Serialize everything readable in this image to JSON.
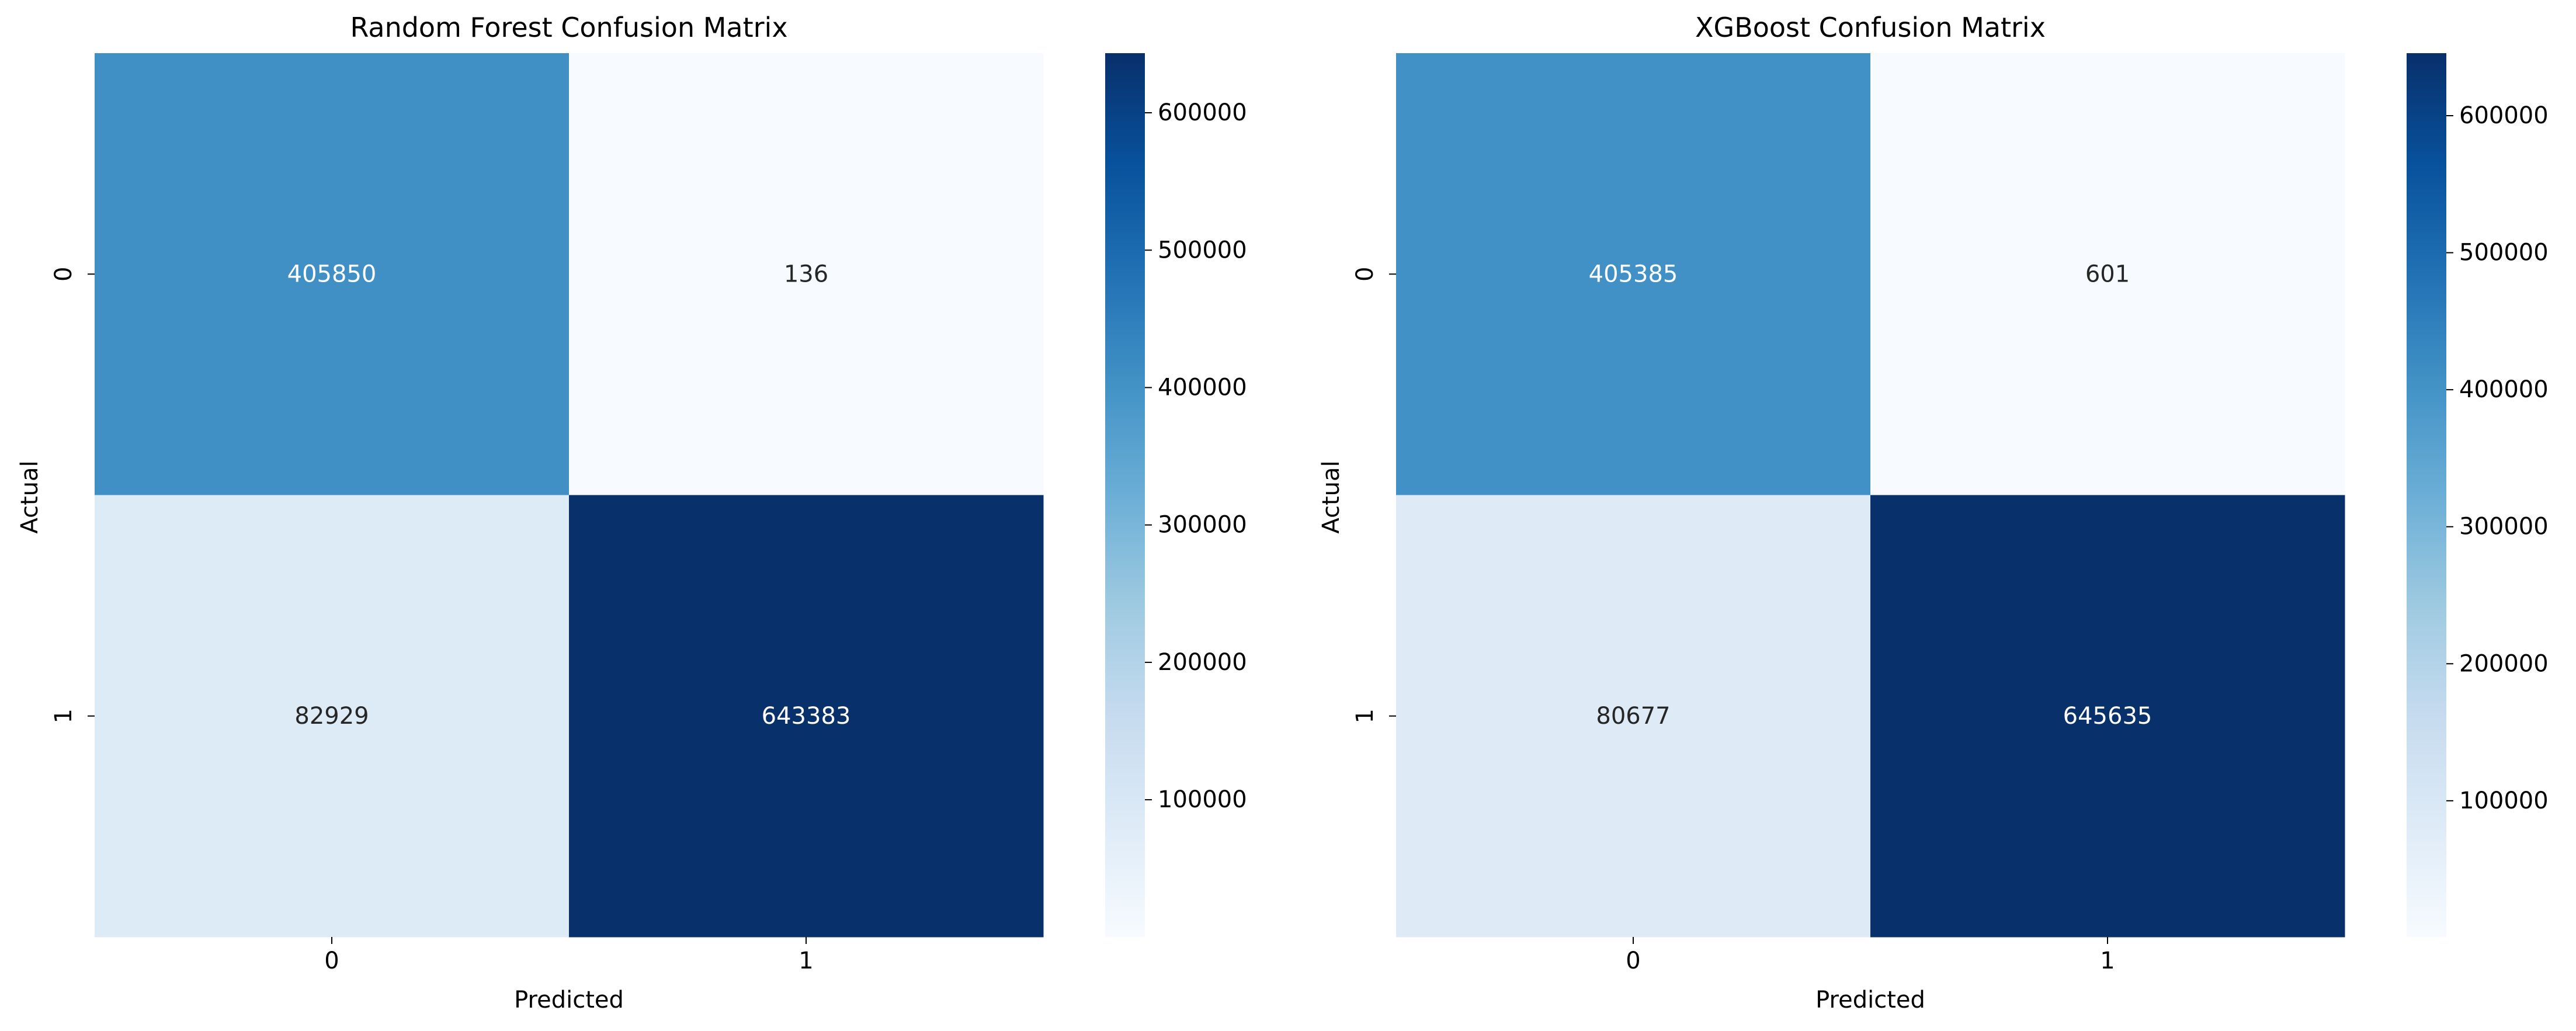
{
  "chart_data": [
    {
      "type": "heatmap",
      "title": "Random Forest Confusion Matrix",
      "xlabel": "Predicted",
      "ylabel": "Actual",
      "x_categories": [
        "0",
        "1"
      ],
      "y_categories": [
        "0",
        "1"
      ],
      "values": [
        [
          405850,
          136
        ],
        [
          82929,
          643383
        ]
      ],
      "value_labels": [
        [
          "405850",
          "136"
        ],
        [
          "82929",
          "643383"
        ]
      ],
      "colorbar": {
        "vmin": 136,
        "vmax": 643383,
        "ticks": [
          100000,
          200000,
          300000,
          400000,
          500000,
          600000
        ],
        "tick_labels": [
          "100000",
          "200000",
          "300000",
          "400000",
          "500000",
          "600000"
        ]
      },
      "colormap": "Blues"
    },
    {
      "type": "heatmap",
      "title": "XGBoost Confusion Matrix",
      "xlabel": "Predicted",
      "ylabel": "Actual",
      "x_categories": [
        "0",
        "1"
      ],
      "y_categories": [
        "0",
        "1"
      ],
      "values": [
        [
          405385,
          601
        ],
        [
          80677,
          645635
        ]
      ],
      "value_labels": [
        [
          "405385",
          "601"
        ],
        [
          "80677",
          "645635"
        ]
      ],
      "colorbar": {
        "vmin": 601,
        "vmax": 645635,
        "ticks": [
          100000,
          200000,
          300000,
          400000,
          500000,
          600000
        ],
        "tick_labels": [
          "100000",
          "200000",
          "300000",
          "400000",
          "500000",
          "600000"
        ]
      },
      "colormap": "Blues"
    }
  ]
}
